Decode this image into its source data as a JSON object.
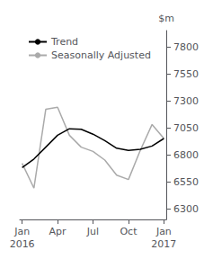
{
  "chart_data": {
    "type": "line",
    "x": [
      0,
      1,
      2,
      3,
      4,
      5,
      6,
      7,
      8,
      9,
      10,
      11,
      12
    ],
    "series": [
      {
        "name": "Seasonally Adjusted",
        "color": "#aaaaaa",
        "values": [
          6720,
          6490,
          7220,
          7240,
          6980,
          6870,
          6830,
          6750,
          6610,
          6570,
          6840,
          7080,
          6950
        ]
      },
      {
        "name": "Trend",
        "color": "#000000",
        "values": [
          6680,
          6760,
          6870,
          6980,
          7040,
          7035,
          6990,
          6930,
          6860,
          6840,
          6850,
          6880,
          6950
        ]
      }
    ],
    "ylabel": "$m",
    "xlim": [
      -0.2,
      12.2
    ],
    "xticks": [
      {
        "value": 0,
        "label": "Jan"
      },
      {
        "value": 3,
        "label": "Apr"
      },
      {
        "value": 6,
        "label": "Jul"
      },
      {
        "value": 9,
        "label": "Oct"
      },
      {
        "value": 12,
        "label": "Jan"
      }
    ],
    "ylim": [
      6200,
      7950
    ],
    "yticks": [
      6300,
      6550,
      6800,
      7050,
      7300,
      7550,
      7800
    ],
    "annotations": [
      {
        "text": "2016",
        "x": 0
      },
      {
        "text": "2017",
        "x": 12
      }
    ],
    "grid": false,
    "legend": "upper left"
  }
}
